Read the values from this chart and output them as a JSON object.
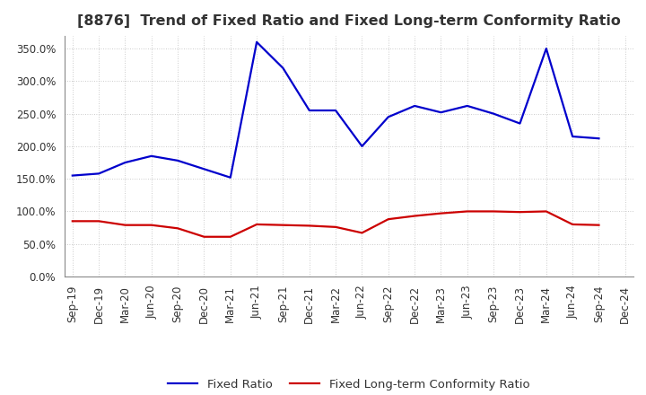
{
  "title": "[8876]  Trend of Fixed Ratio and Fixed Long-term Conformity Ratio",
  "x_labels": [
    "Sep-19",
    "Dec-19",
    "Mar-20",
    "Jun-20",
    "Sep-20",
    "Dec-20",
    "Mar-21",
    "Jun-21",
    "Sep-21",
    "Dec-21",
    "Mar-22",
    "Jun-22",
    "Sep-22",
    "Dec-22",
    "Mar-23",
    "Jun-23",
    "Sep-23",
    "Dec-23",
    "Mar-24",
    "Jun-24",
    "Sep-24",
    "Dec-24"
  ],
  "fixed_ratio": [
    155,
    158,
    175,
    185,
    178,
    165,
    152,
    360,
    320,
    255,
    255,
    200,
    245,
    262,
    252,
    262,
    250,
    235,
    350,
    215,
    212,
    null
  ],
  "fixed_lt_ratio": [
    85,
    85,
    79,
    79,
    74,
    61,
    61,
    80,
    79,
    78,
    76,
    67,
    88,
    93,
    97,
    100,
    100,
    99,
    100,
    80,
    79,
    null
  ],
  "ylim": [
    0,
    370
  ],
  "yticks": [
    0,
    50,
    100,
    150,
    200,
    250,
    300,
    350
  ],
  "fixed_ratio_color": "#0000CC",
  "fixed_lt_ratio_color": "#CC0000",
  "background_color": "#FFFFFF",
  "grid_color": "#BBBBBB",
  "text_color": "#333333",
  "legend_fixed_ratio": "Fixed Ratio",
  "legend_fixed_lt_ratio": "Fixed Long-term Conformity Ratio",
  "title_fontsize": 11.5,
  "tick_fontsize": 8.5,
  "legend_fontsize": 9.5,
  "line_width": 1.6
}
